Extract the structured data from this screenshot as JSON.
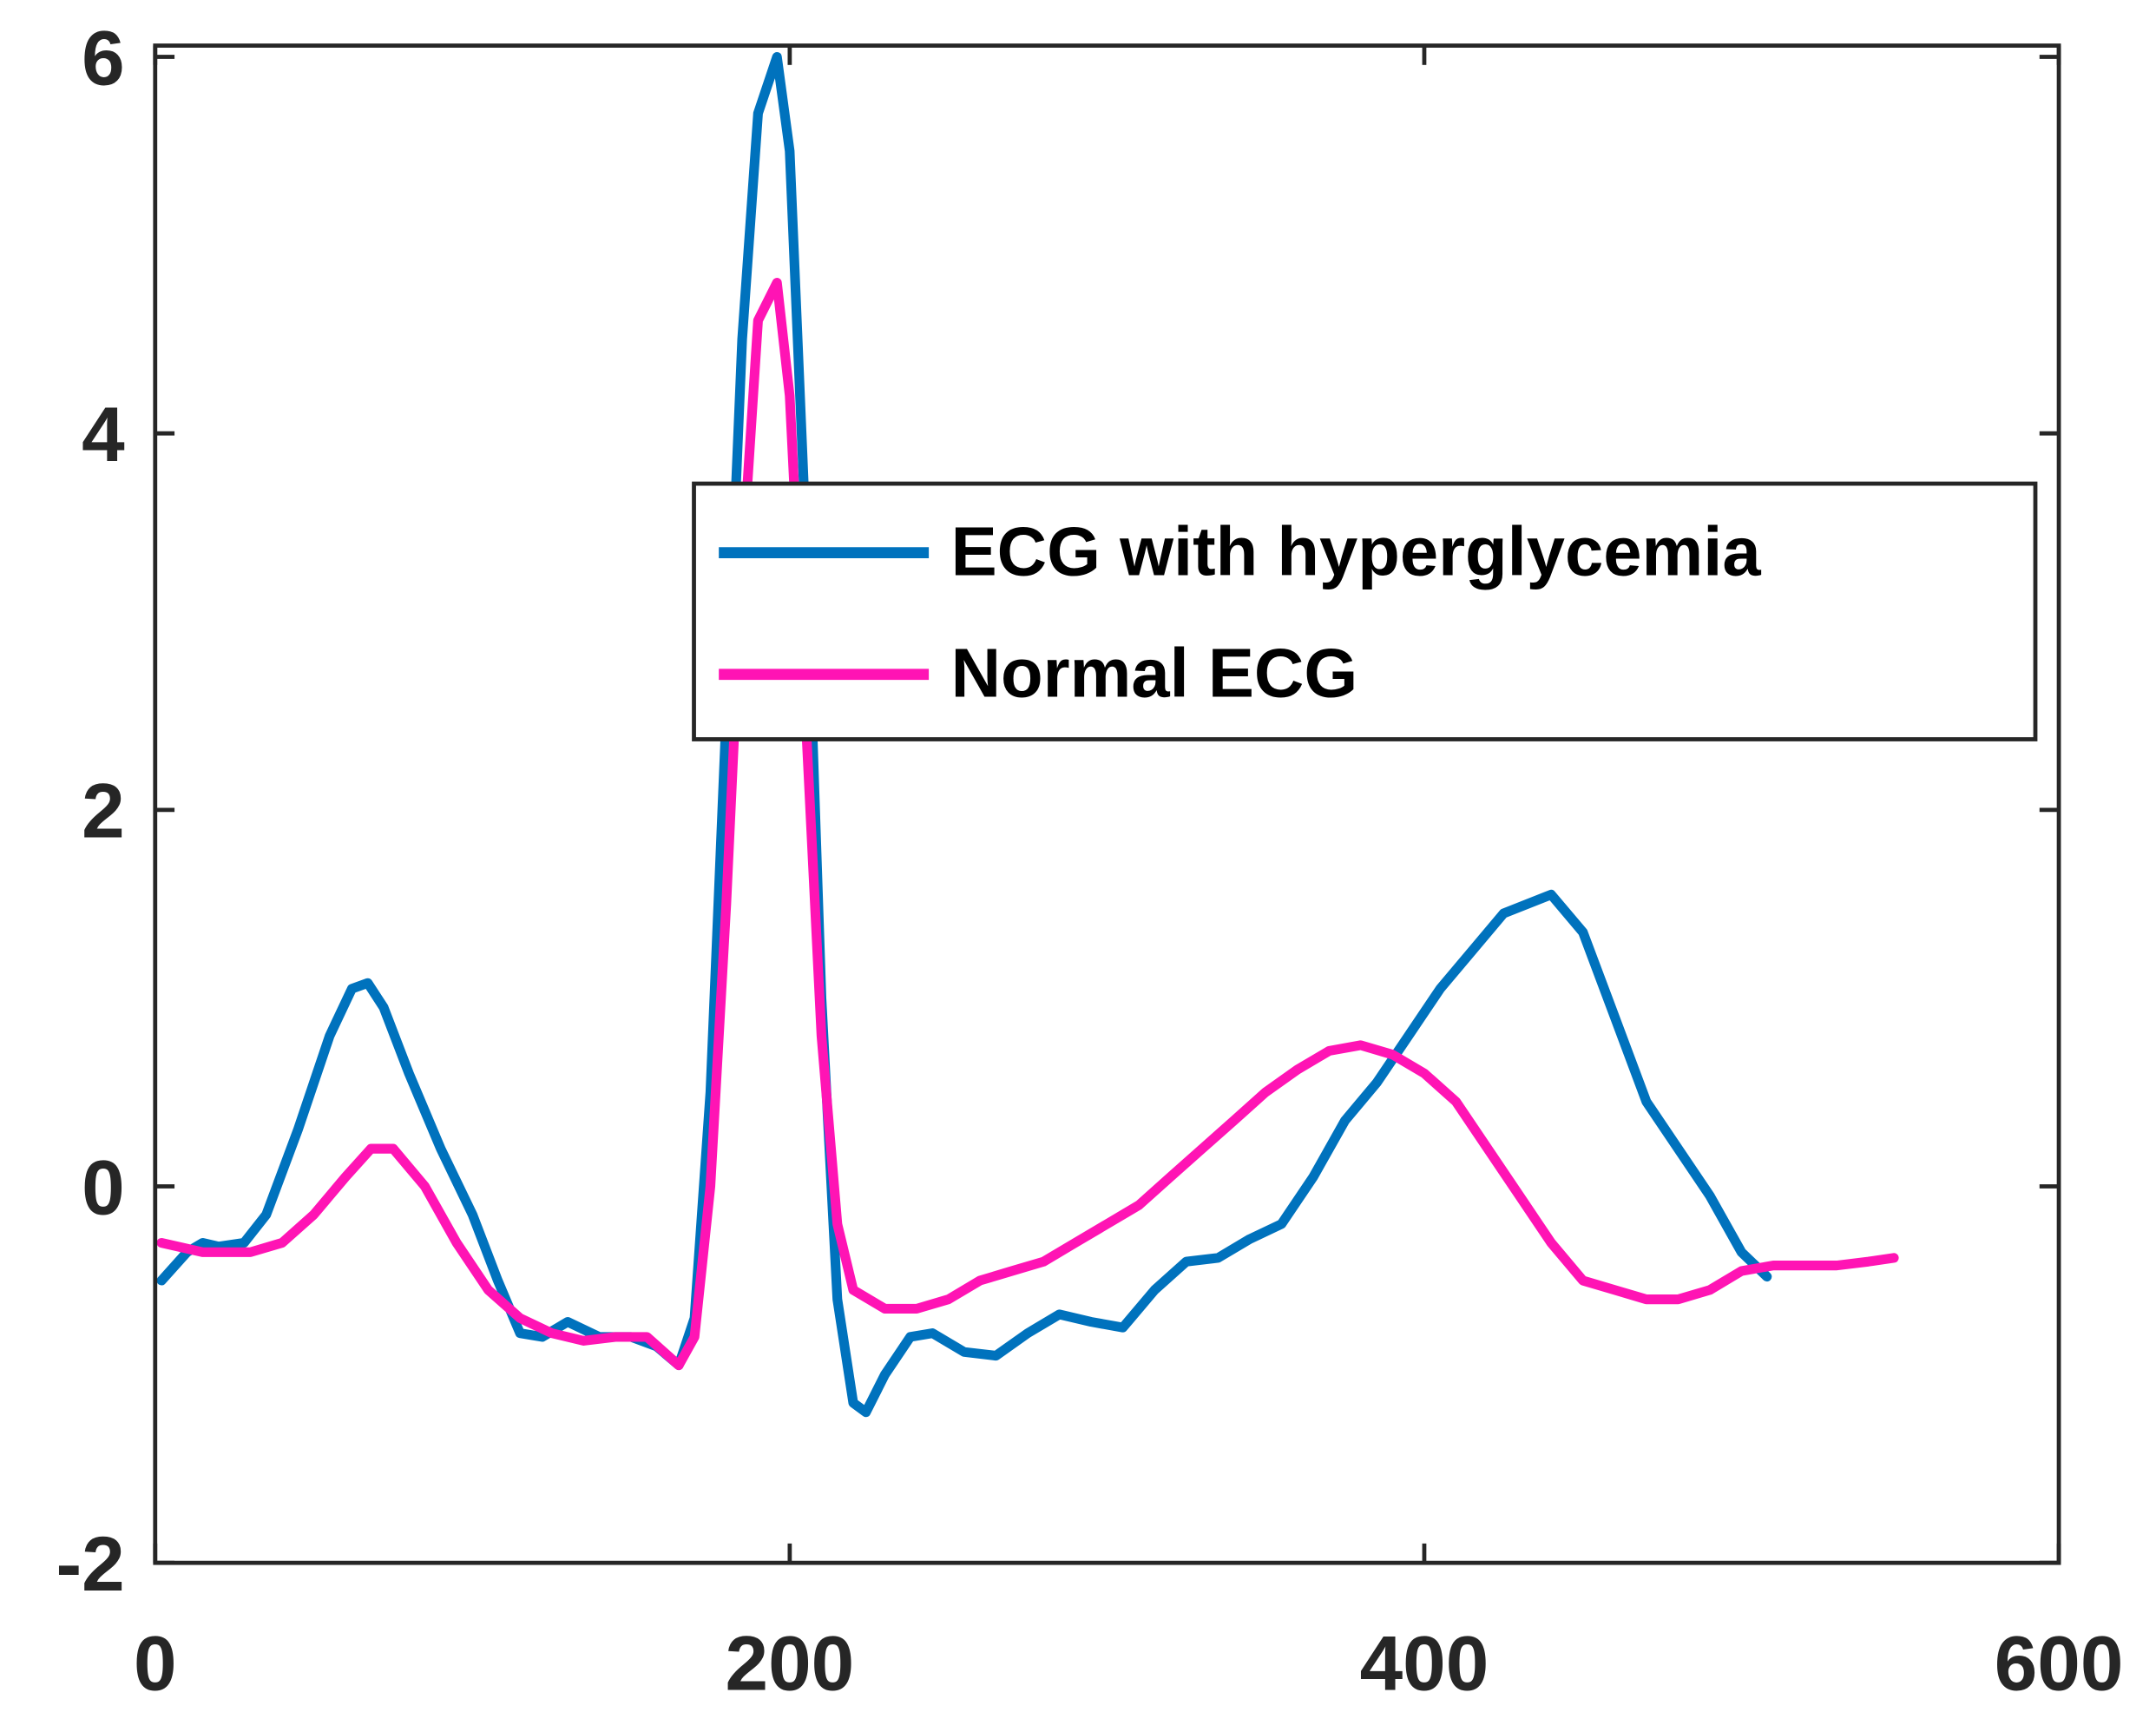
{
  "chart_data": {
    "type": "line",
    "xlim": [
      0,
      600
    ],
    "xticks": [
      0,
      200,
      400,
      600
    ],
    "ylim": [
      -2,
      6.06
    ],
    "yticks": [
      -2,
      0,
      2,
      4,
      6
    ],
    "grid": false,
    "legend": "upper right",
    "series": [
      {
        "name": "ECG with hyperglycemia",
        "color": "#0072bd",
        "x": [
          2,
          10,
          15,
          20,
          28,
          35,
          45,
          55,
          62,
          67,
          72,
          80,
          90,
          100,
          108,
          115,
          122,
          130,
          140,
          150,
          158,
          165,
          170,
          175,
          180,
          185,
          190,
          196,
          200,
          205,
          210,
          215,
          220,
          224,
          230,
          238,
          245,
          255,
          265,
          275,
          285,
          295,
          305,
          315,
          325,
          335,
          345,
          355,
          365,
          375,
          385,
          395,
          405,
          415,
          425,
          440,
          450,
          460,
          470,
          480,
          490,
          500,
          508
        ],
        "values": [
          -0.5,
          -0.35,
          -0.3,
          -0.32,
          -0.3,
          -0.15,
          0.3,
          0.8,
          1.05,
          1.08,
          0.95,
          0.6,
          0.2,
          -0.15,
          -0.5,
          -0.78,
          -0.8,
          -0.72,
          -0.8,
          -0.8,
          -0.85,
          -0.95,
          -0.7,
          0.5,
          2.5,
          4.5,
          5.7,
          6.0,
          5.5,
          3.5,
          1.0,
          -0.6,
          -1.15,
          -1.2,
          -1.0,
          -0.8,
          -0.78,
          -0.88,
          -0.9,
          -0.78,
          -0.68,
          -0.72,
          -0.75,
          -0.55,
          -0.4,
          -0.38,
          -0.28,
          -0.2,
          0.05,
          0.35,
          0.55,
          0.8,
          1.05,
          1.25,
          1.45,
          1.55,
          1.35,
          0.9,
          0.45,
          0.2,
          -0.05,
          -0.35,
          -0.48
        ]
      },
      {
        "name": "Normal ECG",
        "color": "#ff14b4",
        "x": [
          2,
          15,
          30,
          40,
          50,
          60,
          68,
          75,
          85,
          95,
          105,
          115,
          125,
          135,
          145,
          155,
          165,
          170,
          175,
          180,
          185,
          190,
          196,
          200,
          205,
          210,
          215,
          220,
          230,
          240,
          250,
          260,
          270,
          280,
          290,
          300,
          310,
          320,
          330,
          340,
          350,
          360,
          370,
          380,
          390,
          400,
          410,
          420,
          430,
          440,
          450,
          460,
          470,
          480,
          490,
          500,
          510,
          520,
          530,
          540,
          548
        ],
        "values": [
          -0.3,
          -0.35,
          -0.35,
          -0.3,
          -0.15,
          0.05,
          0.2,
          0.2,
          0.0,
          -0.3,
          -0.55,
          -0.7,
          -0.78,
          -0.82,
          -0.8,
          -0.8,
          -0.95,
          -0.8,
          0.0,
          1.5,
          3.3,
          4.6,
          4.8,
          4.2,
          2.5,
          0.8,
          -0.2,
          -0.55,
          -0.65,
          -0.65,
          -0.6,
          -0.5,
          -0.45,
          -0.4,
          -0.3,
          -0.2,
          -0.1,
          0.05,
          0.2,
          0.35,
          0.5,
          0.62,
          0.72,
          0.75,
          0.7,
          0.6,
          0.45,
          0.2,
          -0.05,
          -0.3,
          -0.5,
          -0.55,
          -0.6,
          -0.6,
          -0.55,
          -0.45,
          -0.42,
          -0.42,
          -0.42,
          -0.4,
          -0.38
        ]
      }
    ]
  }
}
